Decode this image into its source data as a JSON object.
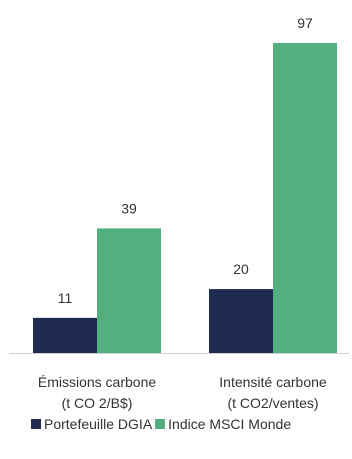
{
  "chart_data": {
    "type": "bar",
    "categories": [
      [
        "Émissions carbone",
        "(t CO 2/B$)"
      ],
      [
        "Intensité carbone",
        "(t CO2/ventes)"
      ]
    ],
    "series": [
      {
        "name": "Portefeuille DGIA",
        "values": [
          11,
          20
        ],
        "color": "#1f2a52"
      },
      {
        "name": "Indice MSCI Monde",
        "values": [
          39,
          97
        ],
        "color": "#52b07e"
      }
    ],
    "ylim": [
      0,
      100
    ],
    "grid": false,
    "legend_position": "bottom"
  }
}
